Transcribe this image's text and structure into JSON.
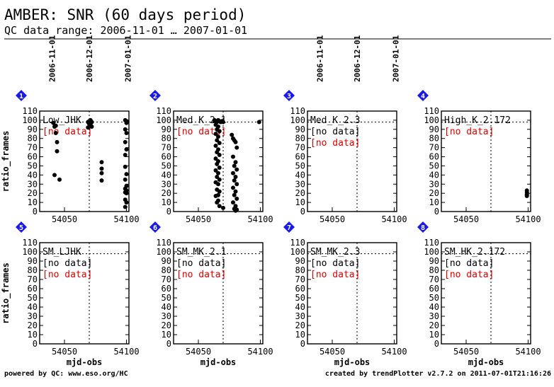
{
  "header": {
    "title": "AMBER: SNR (60 days period)",
    "subtitle": "QC data range: 2006-11-01 … 2007-01-01"
  },
  "footer": {
    "left": "powered by QC: www.eso.org/HC",
    "right": "created by trendPlotter v2.7.2 on  2011-07-01T21:16:26"
  },
  "axes": {
    "xlabel": "mjd-obs",
    "ylabel": "ratio_frames",
    "xlim": [
      54030,
      54102
    ],
    "ylim": [
      0,
      110
    ],
    "xticks": [
      54050,
      54100
    ],
    "yticks": [
      0,
      10,
      20,
      30,
      40,
      50,
      60,
      70,
      80,
      90,
      100,
      110
    ],
    "reference_y": 98,
    "date_markers": [
      {
        "mjd": 54040,
        "label": "2006-11-01"
      },
      {
        "mjd": 54070,
        "label": "2006-12-01"
      },
      {
        "mjd": 54101,
        "label": "2007-01-01"
      }
    ]
  },
  "chart_data": [
    {
      "index": "1",
      "type": "scatter",
      "title": "Low_JHK",
      "annotations": [
        {
          "text": "[no data]",
          "color": "#e00000"
        }
      ],
      "points": [
        [
          54041,
          97
        ],
        [
          54042,
          93
        ],
        [
          54043,
          94
        ],
        [
          54043,
          86
        ],
        [
          54044,
          76
        ],
        [
          54044,
          66
        ],
        [
          54042,
          40
        ],
        [
          54046,
          35
        ],
        [
          54069,
          98
        ],
        [
          54070,
          99
        ],
        [
          54070,
          96
        ],
        [
          54071,
          100
        ],
        [
          54072,
          98
        ],
        [
          54071,
          95
        ],
        [
          54069,
          92
        ],
        [
          54072,
          93
        ],
        [
          54080,
          54
        ],
        [
          54080,
          47
        ],
        [
          54080,
          42
        ],
        [
          54080,
          34
        ],
        [
          54099,
          100
        ],
        [
          54100,
          99
        ],
        [
          54100,
          97
        ],
        [
          54099,
          90
        ],
        [
          54100,
          86
        ],
        [
          54099,
          76
        ],
        [
          54100,
          68
        ],
        [
          54099,
          62
        ],
        [
          54099,
          49
        ],
        [
          54100,
          41
        ],
        [
          54099,
          35
        ],
        [
          54100,
          28
        ],
        [
          54099,
          25
        ],
        [
          54100,
          23
        ],
        [
          54099,
          21
        ],
        [
          54100,
          20
        ],
        [
          54099,
          13
        ],
        [
          54100,
          10
        ],
        [
          54099,
          5
        ]
      ]
    },
    {
      "index": "2",
      "type": "scatter",
      "title": "Med_K_2.1",
      "annotations": [
        {
          "text": "[no data]",
          "color": "#e00000"
        }
      ],
      "points": [
        [
          54063,
          100
        ],
        [
          54064,
          99
        ],
        [
          54065,
          98
        ],
        [
          54066,
          100
        ],
        [
          54067,
          99
        ],
        [
          54068,
          98
        ],
        [
          54064,
          95
        ],
        [
          54066,
          93
        ],
        [
          54065,
          90
        ],
        [
          54067,
          88
        ],
        [
          54064,
          85
        ],
        [
          54066,
          82
        ],
        [
          54065,
          78
        ],
        [
          54067,
          75
        ],
        [
          54064,
          72
        ],
        [
          54066,
          68
        ],
        [
          54065,
          65
        ],
        [
          54067,
          62
        ],
        [
          54064,
          58
        ],
        [
          54066,
          55
        ],
        [
          54065,
          52
        ],
        [
          54067,
          48
        ],
        [
          54064,
          45
        ],
        [
          54066,
          42
        ],
        [
          54065,
          38
        ],
        [
          54067,
          35
        ],
        [
          54064,
          32
        ],
        [
          54066,
          30
        ],
        [
          54065,
          24
        ],
        [
          54067,
          22
        ],
        [
          54066,
          18
        ],
        [
          54064,
          17
        ],
        [
          54066,
          12
        ],
        [
          54065,
          10
        ],
        [
          54067,
          6
        ],
        [
          54069,
          99
        ],
        [
          54070,
          98
        ],
        [
          54070,
          4
        ],
        [
          54077,
          84
        ],
        [
          54078,
          80
        ],
        [
          54079,
          78
        ],
        [
          54080,
          76
        ],
        [
          54081,
          70
        ],
        [
          54078,
          60
        ],
        [
          54080,
          54
        ],
        [
          54079,
          50
        ],
        [
          54081,
          46
        ],
        [
          54078,
          42
        ],
        [
          54080,
          38
        ],
        [
          54079,
          34
        ],
        [
          54081,
          30
        ],
        [
          54078,
          26
        ],
        [
          54080,
          22
        ],
        [
          54079,
          18
        ],
        [
          54081,
          14
        ],
        [
          54078,
          10
        ],
        [
          54080,
          6
        ],
        [
          54079,
          3
        ],
        [
          54081,
          2
        ],
        [
          54080,
          1
        ],
        [
          54099,
          98
        ]
      ]
    },
    {
      "index": "3",
      "type": "scatter",
      "title": "Med_K_2.3",
      "annotations": [
        {
          "text": "[no data]",
          "color": "#000000"
        },
        {
          "text": "[no data]",
          "color": "#e00000"
        }
      ],
      "points": []
    },
    {
      "index": "4",
      "type": "scatter",
      "title": "High_K_2.172",
      "annotations": [
        {
          "text": "[no data]",
          "color": "#e00000"
        }
      ],
      "points": [
        [
          54099,
          23
        ],
        [
          54099,
          21
        ],
        [
          54099,
          19
        ],
        [
          54099,
          18
        ],
        [
          54099,
          17
        ]
      ]
    },
    {
      "index": "5",
      "type": "scatter",
      "title": "SM_LJHK",
      "annotations": [
        {
          "text": "[no data]",
          "color": "#000000"
        },
        {
          "text": "[no data]",
          "color": "#e00000"
        }
      ],
      "points": []
    },
    {
      "index": "6",
      "type": "scatter",
      "title": "SM_MK_2.1",
      "annotations": [
        {
          "text": "[no data]",
          "color": "#000000"
        },
        {
          "text": "[no data]",
          "color": "#e00000"
        }
      ],
      "points": []
    },
    {
      "index": "7",
      "type": "scatter",
      "title": "SM_MK_2.3",
      "annotations": [
        {
          "text": "[no data]",
          "color": "#000000"
        },
        {
          "text": "[no data]",
          "color": "#e00000"
        }
      ],
      "points": []
    },
    {
      "index": "8",
      "type": "scatter",
      "title": "SM_HK_2.172",
      "annotations": [
        {
          "text": "[no data]",
          "color": "#000000"
        },
        {
          "text": "[no data]",
          "color": "#e00000"
        }
      ],
      "points": []
    }
  ],
  "colors": {
    "badge": "#1a1ae6",
    "badge_text": "#ffffff",
    "nodata_red": "#e00000",
    "ink": "#000000"
  }
}
